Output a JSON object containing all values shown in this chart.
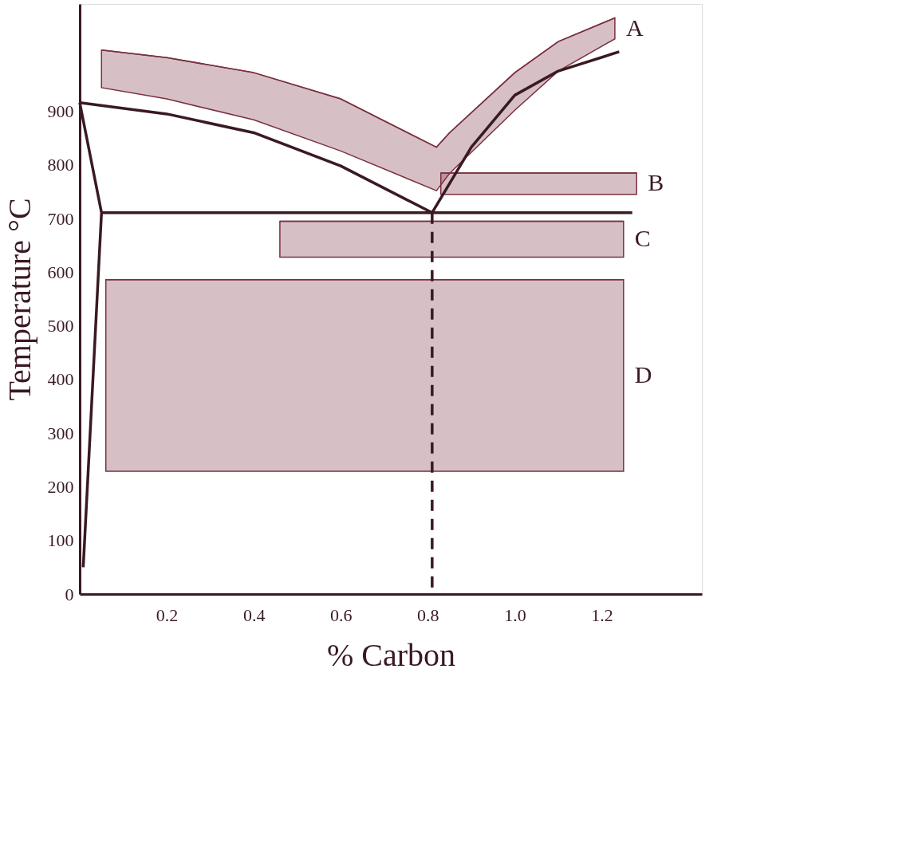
{
  "chart_data": {
    "type": "line",
    "xlabel": "% Carbon",
    "ylabel": "Temperature °C",
    "xlim": [
      0,
      1.43
    ],
    "ylim": [
      0,
      1100
    ],
    "xticks": [
      0.2,
      0.4,
      0.6,
      0.8,
      {
        "value": 1.0,
        "label": "1.0"
      },
      1.2
    ],
    "yticks": [
      0,
      100,
      200,
      300,
      400,
      500,
      600,
      700,
      800,
      900
    ],
    "grid": false,
    "marker": "none",
    "series": [
      {
        "color": "#7a3040",
        "line_style": "solid",
        "x": [
          0.05,
          0.2,
          0.4,
          0.6,
          0.82,
          0.85,
          1.0,
          1.1,
          1.23
        ],
        "lower": [
          944,
          923,
          884,
          826,
          752,
          784,
          902,
          975,
          1035
        ],
        "upper": [
          1014,
          1000,
          972,
          923,
          833,
          860,
          972,
          1030,
          1074
        ],
        "values": [
          1014,
          1000,
          972,
          923,
          833,
          860,
          972,
          1030,
          1074
        ]
      },
      {
        "color": "#7a3040",
        "line_style": "solid",
        "x": [
          0.83,
          1.28
        ],
        "lower": [
          745,
          745
        ],
        "upper": [
          785,
          785
        ],
        "values": [
          785,
          785
        ]
      },
      {
        "color": "#7a3040",
        "line_style": "solid",
        "x": [
          0.46,
          1.25
        ],
        "lower": [
          628,
          628
        ],
        "upper": [
          695,
          695
        ],
        "values": [
          695,
          695
        ]
      },
      {
        "color": "#7a3040",
        "line_style": "solid",
        "x": [
          0.06,
          1.25
        ],
        "lower": [
          229,
          229
        ],
        "upper": [
          586,
          586
        ],
        "values": [
          586,
          586
        ]
      },
      {
        "color": "#3a1a22",
        "line_style": "solid",
        "x": [
          0,
          0.2,
          0.4,
          0.6,
          0.81,
          0.9,
          1.0,
          1.1,
          1.24
        ],
        "values": [
          916,
          895,
          860,
          798,
          711,
          833,
          930,
          975,
          1011
        ]
      },
      {
        "color": "#3a1a22",
        "line_style": "solid",
        "x": [
          0.05,
          1.27
        ],
        "values": [
          711,
          711
        ]
      },
      {
        "color": "#3a1a22",
        "line_style": "solid",
        "x": [
          0,
          0.05,
          0.008
        ],
        "values": [
          916,
          711,
          50
        ]
      },
      {
        "color": "#3a1a22",
        "line_style": "dashed",
        "x": [
          0.81,
          0.81
        ],
        "values": [
          711,
          0
        ]
      }
    ],
    "annotations": [
      {
        "text": "A",
        "x": 1.23,
        "y": 1054
      },
      {
        "text": "B",
        "x": 1.28,
        "y": 765
      },
      {
        "text": "C",
        "x": 1.25,
        "y": 661.5
      },
      {
        "text": "D",
        "x": 1.25,
        "y": 407.5
      }
    ]
  }
}
